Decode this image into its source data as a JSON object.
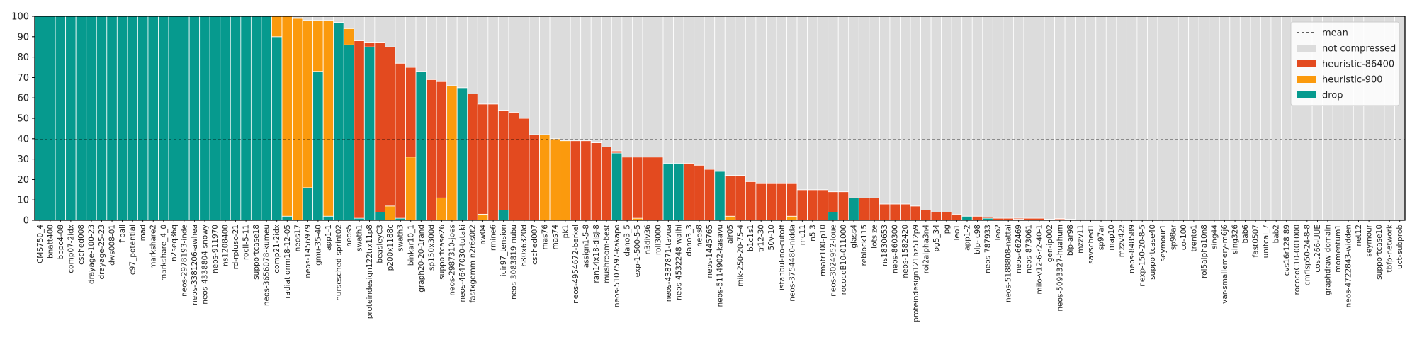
{
  "chart_data": {
    "type": "bar",
    "stacked": true,
    "title": "",
    "xlabel": "",
    "ylabel": "",
    "ylim": [
      0,
      100
    ],
    "yticks": [
      0,
      10,
      20,
      30,
      40,
      50,
      60,
      70,
      80,
      90,
      100
    ],
    "grid": false,
    "mean_value": 39.5,
    "legend_position": "top-right",
    "legend": [
      {
        "key": "mean",
        "label": "mean",
        "style": "dashed-line",
        "color": "#000000"
      },
      {
        "key": "not_compressed",
        "label": "not compressed",
        "color": "#dcdcdc"
      },
      {
        "key": "h86400",
        "label": "heuristic-86400",
        "color": "#e34a1f"
      },
      {
        "key": "h900",
        "label": "heuristic-900",
        "color": "#fb9a0d"
      },
      {
        "key": "drop",
        "label": "drop",
        "color": "#069a8e"
      }
    ],
    "categories": [
      "CMS750_4",
      "bnatt400",
      "bppc4-08",
      "comp07-2idx",
      "csched008",
      "drayage-100-23",
      "drayage-25-23",
      "dws008-01",
      "fiball",
      "ic97_potential",
      "mad",
      "markshare2",
      "markshare_4_0",
      "n2seq36q",
      "neos-2978193-inde",
      "neos-3381206-awhea",
      "neos-4338804-snowy",
      "neos-911970",
      "ns1208400",
      "rd-rplusc-21",
      "rocII-5-11",
      "supportcase18",
      "neos-3656078-kumeu",
      "comp21-2idx",
      "radiationm18-12-05",
      "neos17",
      "neos-1456979",
      "gmu-35-40",
      "app1-1",
      "nursesched-sprint02",
      "neos5",
      "swath1",
      "proteindesign122trx11p8",
      "beasleyC3",
      "p200x1188c",
      "swath3",
      "binkar10_1",
      "graph20-20-1rand",
      "sp150x300d",
      "supportcase26",
      "neos-2987310-joes",
      "neos-4647030-tutaki",
      "fastxgemm-n2r6s0t2",
      "nw04",
      "rmine6",
      "icir97_tension",
      "neos-3083819-nubu",
      "h80x6320d",
      "csched007",
      "mas76",
      "mas74",
      "pk1",
      "neos-4954672-berkel",
      "assign1-5-8",
      "ran14x18-disj-8",
      "mushroom-best",
      "neos-5107597-kakapo",
      "dano3_5",
      "exp-1-500-5-5",
      "n3div36",
      "roll3000",
      "neos-4387871-tavua",
      "neos-4532248-waihi",
      "dano3_3",
      "neos8",
      "neos-1445765",
      "neos-5114902-kasavu",
      "air05",
      "mik-250-20-75-4",
      "b1c1s1",
      "tr12-30",
      "50v-10",
      "istanbul-no-cutoff",
      "neos-3754480-nidda",
      "mc11",
      "n5-3",
      "rmatr100-p10",
      "neos-3024952-loue",
      "rococoB10-011000",
      "glass4",
      "reblock115",
      "lotsize",
      "ns1830653",
      "neos-860300",
      "neos-1582420",
      "proteindesign121hz512p9",
      "roi2alpha3n4",
      "pg5_34",
      "pg",
      "leo1",
      "app1-2",
      "blp-ic98",
      "neos-787933",
      "leo2",
      "neos-5188808-nattai",
      "neos-662469",
      "neos-873061",
      "milo-v12-6-r2-40-1",
      "gen-ip002",
      "neos-5093327-huahum",
      "blp-ar98",
      "mzzv11",
      "savsched1",
      "sp97ar",
      "map10",
      "mzzv42z",
      "neos-848589",
      "nexp-150-20-8-5",
      "supportcase40",
      "seymour1",
      "sp98ar",
      "co-100",
      "trento1",
      "roi5alpha10n8",
      "sing44",
      "var-smallemery-m6j6",
      "sing326",
      "bab6",
      "fast0507",
      "unitcal_7",
      "bab2",
      "cvs16r128-89",
      "rococoC10-001000",
      "cmflsp50-24-8-8",
      "cost266-UUE",
      "graphdraw-domain",
      "momentum1",
      "neos-4722843-widden",
      "net12",
      "seymour",
      "supportcase10",
      "tbfp-network",
      "uct-subprob"
    ],
    "labeled_ticks": [
      "CMS750_4",
      "bnatt400",
      "bppc4-08",
      "comp07-2idx",
      "csched008",
      "drayage-100-23",
      "drayage-25-23",
      "dws008-01",
      "fiball",
      "ic97_potential",
      "mad",
      "markshare2",
      "markshare_4_0",
      "n2seq36q",
      "neos-2978193-inde",
      "neos-3381206-awhea",
      "neos-4338804-snowy",
      "neos-911970",
      "ns1208400",
      "rd-rplusc-21",
      "rocII-5-11",
      "supportcase18",
      "neos-3656078-kumeu",
      "comp21-2idx",
      "radiationm18-12-05",
      "neos17",
      "neos-1456979",
      "gmu-35-40",
      "app1-1",
      "nursesched-sprint02",
      "neos5",
      "swath1",
      "proteindesign122trx11p8",
      "beasleyC3",
      "p200x1188c",
      "swath3",
      "binkar10_1",
      "graph20-20-1rand",
      "sp150x300d",
      "supportcase26",
      "neos-2987310-joes",
      "neos-4647030-tutaki",
      "fastxgemm-n2r6s0t2",
      "nw04",
      "rmine6",
      "icir97_tension",
      "neos-3083819-nubu",
      "h80x6320d",
      "csched007",
      "mas76",
      "mas74",
      "pk1",
      "neos-4954672-berkel",
      "assign1-5-8",
      "ran14x18-disj-8",
      "mushroom-best",
      "neos-5107597-kakapo",
      "dano3_5",
      "exp-1-500-5-5",
      "n3div36",
      "roll3000",
      "neos-4387871-tavua",
      "neos-4532248-waihi",
      "dano3_3",
      "neos8",
      "neos-1445765",
      "neos-5114902-kasavu",
      "air05",
      "mik-250-20-75-4",
      "b1c1s1",
      "tr12-30",
      "50v-10",
      "istanbul-no-cutoff",
      "neos-3754480-nidda",
      "mc11",
      "n5-3",
      "rmatr100-p10",
      "neos-3024952-loue",
      "rococoB10-011000",
      "glass4",
      "reblock115",
      "lotsize",
      "ns1830653",
      "neos-860300",
      "neos-1582420",
      "proteindesign121hz512p9",
      "roi2alpha3n4",
      "pg5_34",
      "pg",
      "leo1",
      "app1-2",
      "blp-ic98",
      "neos-787933",
      "leo2",
      "neos-5188808-nattai",
      "neos-662469",
      "neos-873061",
      "milo-v12-6-r2-40-1",
      "gen-ip002",
      "neos-5093327-huahum",
      "blp-ar98",
      "mzzv11",
      "savsched1",
      "sp97ar",
      "map10",
      "mzzv42z",
      "neos-848589",
      "nexp-150-20-8-5",
      "supportcase40",
      "seymour1",
      "sp98ar",
      "co-100",
      "trento1",
      "roi5alpha10n8",
      "sing44",
      "var-smallemery-m6j6",
      "sing326",
      "bab6",
      "fast0507",
      "unitcal_7",
      "bab2",
      "cvs16r128-89",
      "rococoC10-001000",
      "cmflsp50-24-8-8",
      "cost266-UUE",
      "graphdraw-domain",
      "momentum1",
      "neos-4722843-widden",
      "net12",
      "seymour",
      "supportcase10",
      "tbfp-network",
      "uct-subprob"
    ],
    "series": [
      {
        "key": "drop",
        "values": [
          100,
          100,
          100,
          100,
          100,
          100,
          100,
          100,
          100,
          100,
          100,
          100,
          100,
          100,
          100,
          100,
          100,
          100,
          100,
          100,
          100,
          100,
          100,
          90,
          2,
          0,
          16,
          73,
          2,
          97,
          86,
          1,
          85,
          4,
          0,
          1,
          0,
          73,
          0,
          0,
          0,
          65,
          0,
          0,
          0,
          5,
          0,
          0,
          0,
          0,
          0,
          0,
          0,
          0,
          0,
          0,
          33,
          0,
          0,
          0,
          0,
          28,
          28,
          0,
          0,
          0,
          24,
          0,
          0,
          0,
          0,
          0,
          0,
          0,
          0,
          0,
          0,
          4,
          0,
          11,
          0,
          0,
          0,
          0,
          0,
          0,
          0,
          0,
          0,
          0,
          2,
          0,
          1,
          0,
          0,
          0.5,
          0,
          0,
          0,
          0.4,
          0,
          0,
          0,
          0,
          0,
          0,
          0,
          0,
          0,
          0,
          0,
          0,
          0,
          0,
          0,
          0,
          0,
          0,
          0,
          0,
          0,
          0,
          0,
          0,
          0,
          0,
          0,
          0,
          0,
          0,
          0,
          0,
          0
        ]
      },
      {
        "key": "h900",
        "values": [
          0,
          0,
          0,
          0,
          0,
          0,
          0,
          0,
          0,
          0,
          0,
          0,
          0,
          0,
          0,
          0,
          0,
          0,
          0,
          0,
          0,
          0,
          0,
          10,
          98,
          99,
          82,
          25,
          96,
          0,
          8,
          0,
          0,
          0,
          7,
          0,
          31,
          0,
          0,
          11,
          66,
          0,
          0,
          3,
          0,
          0,
          0,
          0,
          0,
          42,
          40,
          39,
          0,
          0,
          0,
          0,
          0,
          0,
          1,
          0,
          0,
          0,
          0,
          0,
          0,
          0,
          0,
          2,
          0,
          0,
          0,
          0,
          0,
          2,
          0,
          0,
          0,
          0,
          0,
          0,
          0,
          0,
          0,
          0,
          0,
          0,
          0,
          0,
          0,
          0,
          0,
          0,
          0,
          0,
          0,
          0,
          0,
          0,
          0,
          0,
          0,
          0,
          0,
          0,
          0,
          0,
          0,
          0,
          0,
          0,
          0,
          0,
          0,
          0,
          0,
          0,
          0,
          0,
          0,
          0,
          0,
          0,
          0,
          0,
          0,
          0,
          0,
          0,
          0,
          0,
          0,
          0,
          0
        ]
      },
      {
        "key": "h86400",
        "values": [
          0,
          0,
          0,
          0,
          0,
          0,
          0,
          0,
          0,
          0,
          0,
          0,
          0,
          0,
          0,
          0,
          0,
          0,
          0,
          0,
          0,
          0,
          0,
          0,
          0,
          0,
          0,
          0,
          0,
          0,
          0,
          87,
          2,
          83,
          78,
          76,
          44,
          0,
          69,
          57,
          0,
          0,
          62,
          54,
          57,
          49,
          53,
          50,
          42,
          0,
          0,
          0,
          39,
          39,
          38,
          36,
          1,
          31,
          30,
          31,
          31,
          0,
          0,
          28,
          27,
          25,
          0,
          20,
          22,
          19,
          18,
          18,
          18,
          16,
          15,
          15,
          15,
          10,
          14,
          0,
          11,
          11,
          8,
          8,
          8,
          7,
          5,
          4,
          4,
          3,
          0,
          2,
          0.5,
          1,
          1,
          0.5,
          1,
          1,
          0.5,
          0.5,
          0.5,
          0,
          0,
          0,
          0,
          0,
          0,
          0,
          0,
          0,
          0,
          0,
          0,
          0,
          0,
          0,
          0,
          0,
          0,
          0,
          0,
          0,
          0,
          0,
          0,
          0,
          0,
          0,
          0,
          0,
          0,
          0,
          0
        ]
      },
      {
        "key": "not_compressed",
        "values": [
          0,
          0,
          0,
          0,
          0,
          0,
          0,
          0,
          0,
          0,
          0,
          0,
          0,
          0,
          0,
          0,
          0,
          0,
          0,
          0,
          0,
          0,
          0,
          0,
          0,
          1,
          2,
          2,
          2,
          3,
          6,
          12,
          13,
          13,
          15,
          23,
          25,
          27,
          31,
          32,
          34,
          35,
          38,
          43,
          43,
          46,
          47,
          50,
          58,
          58,
          60,
          61,
          61,
          61,
          62,
          64,
          66,
          69,
          69,
          69,
          69,
          72,
          72,
          72,
          73,
          75,
          76,
          78,
          78,
          81,
          82,
          82,
          82,
          82,
          85,
          85,
          85,
          86,
          86,
          89,
          89,
          89,
          92,
          92,
          92,
          93,
          95,
          96,
          96,
          97,
          98,
          98,
          98.5,
          99,
          99,
          99,
          99,
          99,
          99.5,
          99.5,
          99.5,
          100,
          100,
          100,
          100,
          100,
          100,
          100,
          100,
          100,
          100,
          100,
          100,
          100,
          100,
          100,
          100,
          100,
          100,
          100,
          100,
          100,
          100,
          100,
          100,
          100,
          100,
          100,
          100,
          100,
          100,
          100,
          100
        ]
      }
    ]
  }
}
